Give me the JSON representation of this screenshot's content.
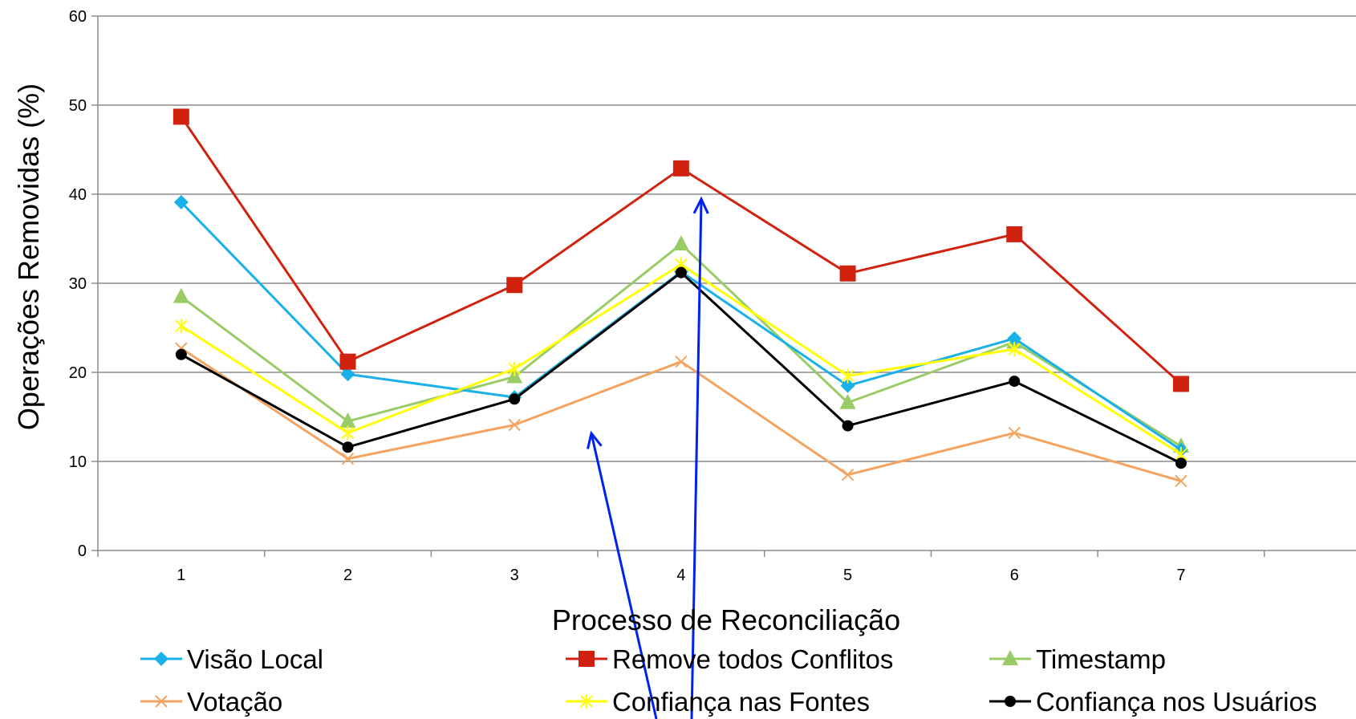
{
  "chart_data": {
    "type": "line",
    "title": "",
    "xlabel": "Processo de Reconciliação",
    "ylabel": "Operações Removidas (%)",
    "categories": [
      "1",
      "2",
      "3",
      "4",
      "5",
      "6",
      "7"
    ],
    "ylim": [
      0,
      60
    ],
    "yticks": [
      "0",
      "10",
      "20",
      "30",
      "40",
      "50",
      "60"
    ],
    "grid": true,
    "legend_position": "bottom",
    "series": [
      {
        "name": "Visão Local",
        "color": "#1ab0e8",
        "marker": "diamond",
        "values": [
          39.1,
          19.8,
          17.2,
          31.3,
          18.5,
          23.8,
          11.3
        ]
      },
      {
        "name": "Remove todos Conflitos",
        "color": "#d0220f",
        "marker": "square",
        "values": [
          48.7,
          21.2,
          29.8,
          42.9,
          31.1,
          35.5,
          18.7
        ]
      },
      {
        "name": "Timestamp",
        "color": "#99cc66",
        "marker": "triangle",
        "values": [
          28.5,
          14.5,
          19.5,
          34.4,
          16.6,
          23.4,
          11.7
        ]
      },
      {
        "name": "Votação",
        "color": "#f4a460",
        "marker": "x",
        "values": [
          22.7,
          10.3,
          14.1,
          21.2,
          8.5,
          13.2,
          7.8
        ]
      },
      {
        "name": "Confiança nas Fontes",
        "color": "#ffff00",
        "marker": "star",
        "values": [
          25.2,
          13.2,
          20.4,
          32.1,
          19.6,
          22.6,
          10.8
        ]
      },
      {
        "name": "Confiança nos Usuários",
        "color": "#000000",
        "marker": "circle",
        "values": [
          22.0,
          11.6,
          17.0,
          31.2,
          14.0,
          19.0,
          9.8
        ]
      }
    ]
  },
  "annotations": {
    "arrow_color": "#0022ee"
  }
}
